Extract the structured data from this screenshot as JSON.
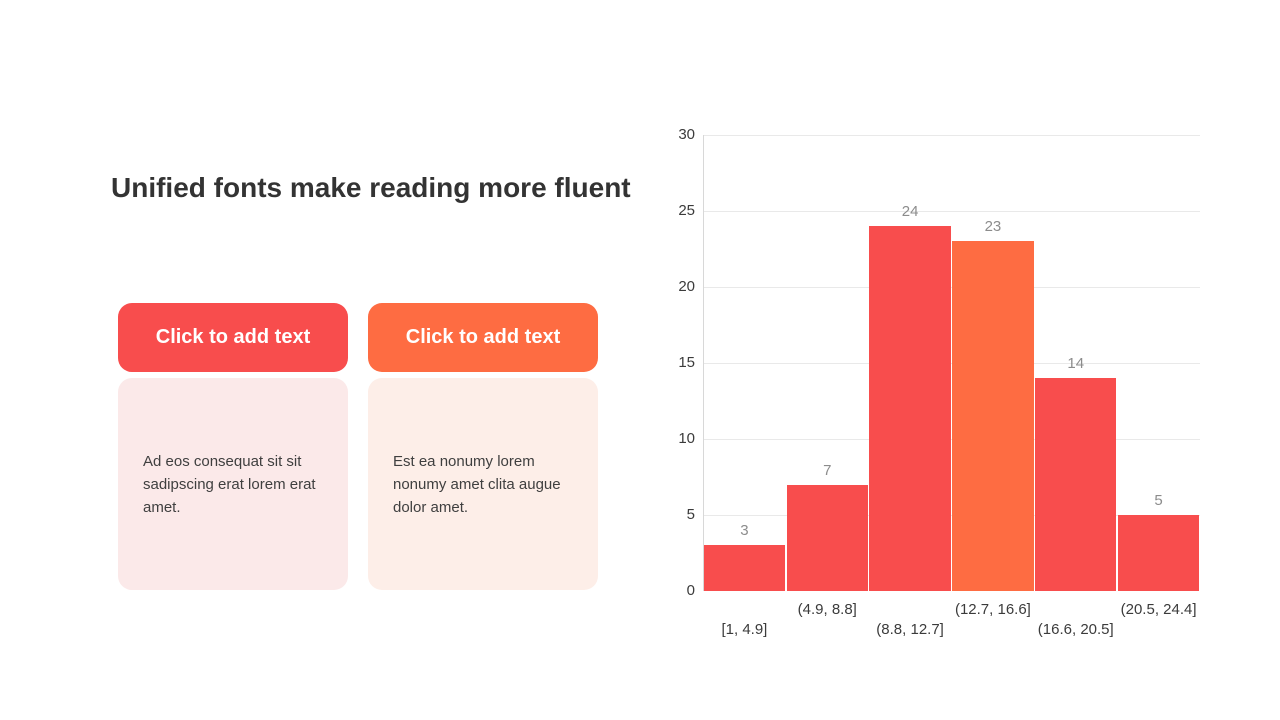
{
  "slide": {
    "title": "Unified fonts make reading more fluent",
    "buttons": [
      {
        "label": "Click to add text",
        "color": "#F84D4D"
      },
      {
        "label": "Click to add text",
        "color": "#FE6C42"
      }
    ],
    "cards": [
      {
        "text": "Ad eos consequat sit sit sadipscing erat lorem erat amet.",
        "bg": "#FBE9E9"
      },
      {
        "text": "Est ea nonumy lorem nonumy amet clita augue dolor amet.",
        "bg": "#FDEEE8"
      }
    ]
  },
  "chart_data": {
    "type": "bar",
    "subtype": "histogram",
    "title": "",
    "xlabel": "",
    "ylabel": "",
    "categories": [
      "[1, 4.9]",
      "(4.9, 8.8]",
      "(8.8, 12.7]",
      "(12.7, 16.6]",
      "(16.6, 20.5]",
      "(20.5, 24.4]"
    ],
    "values": [
      3,
      7,
      24,
      23,
      14,
      5
    ],
    "bar_colors": [
      "#F84D4D",
      "#F84D4D",
      "#F84D4D",
      "#FE6C42",
      "#F84D4D",
      "#F84D4D"
    ],
    "ylim": [
      0,
      30
    ],
    "yticks": [
      0,
      5,
      10,
      15,
      20,
      25,
      30
    ],
    "grid": true,
    "legend": "none",
    "data_labels": true,
    "data_label_color": "#8C8C8C",
    "grid_color": "#E9E9E9",
    "axis_color": "#D8D8D8",
    "tick_color": "#3B3B3B"
  }
}
